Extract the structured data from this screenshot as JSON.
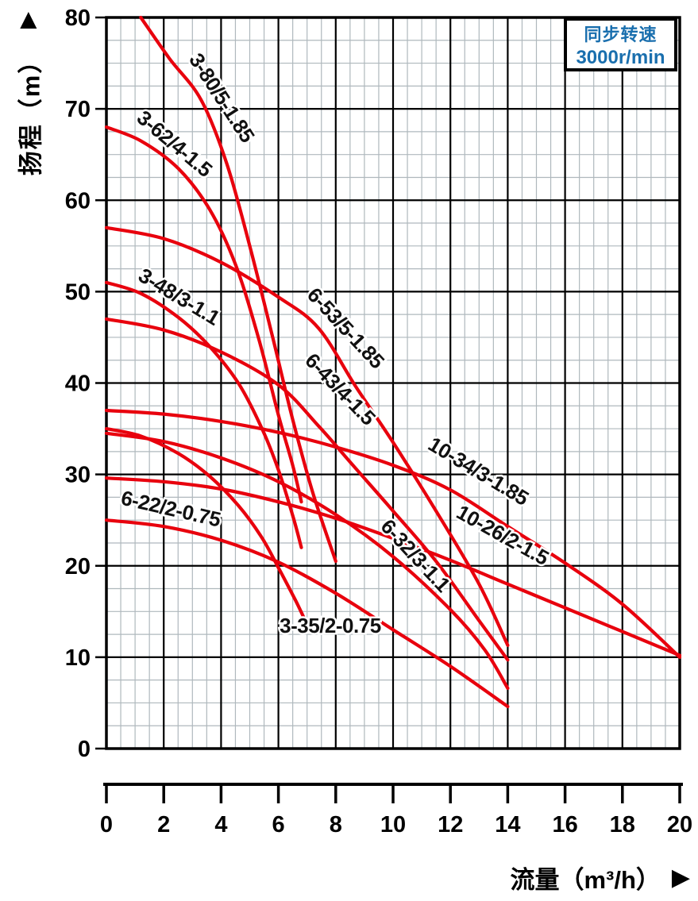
{
  "legend": {
    "line1": "同步转速",
    "line2": "3000r/min",
    "color": "#1a6fae"
  },
  "y_axis": {
    "title": "扬程（m）",
    "arrow": "▲",
    "ticks": [
      80,
      70,
      60,
      50,
      40,
      30,
      20,
      10,
      0
    ]
  },
  "x_axis": {
    "title": "流量（m³/h）",
    "arrow": "▶",
    "ticks": [
      0,
      2,
      4,
      6,
      8,
      10,
      12,
      14,
      16,
      18,
      20
    ]
  },
  "colors": {
    "curve": "#e8000d",
    "grid_major": "#000000",
    "grid_minor": "#afb8bd",
    "frame": "#000000",
    "label_text": "#111111"
  },
  "chart_data": {
    "type": "line",
    "title": "",
    "xlabel": "流量（m³/h）",
    "ylabel": "扬程（m）",
    "xlim": [
      0,
      20
    ],
    "ylim": [
      0,
      80
    ],
    "x_major_step": 2,
    "x_minor_step": 0.5,
    "y_major_step": 10,
    "y_minor_step": 2.5,
    "grid": "on",
    "legend_position": "top-right",
    "series": [
      {
        "name": "3-80/5-1.85",
        "points": [
          [
            1.2,
            80
          ],
          [
            2.2,
            75.5
          ],
          [
            3.3,
            71
          ],
          [
            4.2,
            64
          ],
          [
            5.0,
            55
          ],
          [
            5.8,
            45
          ],
          [
            6.5,
            36
          ],
          [
            7.2,
            28
          ],
          [
            8.0,
            20.5
          ]
        ],
        "label": {
          "q": 3.82,
          "h": 70.8,
          "rot": 57
        }
      },
      {
        "name": "3-62/4-1.5",
        "points": [
          [
            0,
            68
          ],
          [
            1.2,
            66.5
          ],
          [
            2.5,
            63.5
          ],
          [
            3.6,
            59
          ],
          [
            4.5,
            53
          ],
          [
            5.3,
            45
          ],
          [
            6.0,
            36.5
          ],
          [
            6.5,
            31
          ],
          [
            6.8,
            27
          ]
        ],
        "label": {
          "q": 2.22,
          "h": 65.6,
          "rot": 40
        }
      },
      {
        "name": "3-48/3-1.1",
        "points": [
          [
            0,
            51
          ],
          [
            1.2,
            49.8
          ],
          [
            2.5,
            47.2
          ],
          [
            3.6,
            44
          ],
          [
            4.6,
            40
          ],
          [
            5.4,
            35.2
          ],
          [
            6.0,
            30.5
          ],
          [
            6.5,
            25.5
          ],
          [
            6.8,
            22
          ]
        ],
        "label": {
          "q": 2.41,
          "h": 48.8,
          "rot": 31
        }
      },
      {
        "name": "3-35/2-0.75",
        "points": [
          [
            0,
            35
          ],
          [
            1.2,
            34.2
          ],
          [
            2.5,
            32.3
          ],
          [
            3.6,
            29.8
          ],
          [
            4.6,
            26.6
          ],
          [
            5.4,
            23.2
          ],
          [
            6.0,
            19.8
          ],
          [
            6.6,
            16.2
          ],
          [
            6.95,
            13.9
          ]
        ],
        "label": {
          "q": 7.81,
          "h": 12.7,
          "rot": 0
        }
      },
      {
        "name": "6-53/5-1.85",
        "points": [
          [
            0,
            57
          ],
          [
            2,
            55.8
          ],
          [
            4,
            53.2
          ],
          [
            6,
            49.4
          ],
          [
            7.4,
            46
          ],
          [
            8.7,
            39.6
          ],
          [
            10,
            33.5
          ],
          [
            11.5,
            26
          ],
          [
            13,
            18
          ],
          [
            14,
            11.3
          ]
        ],
        "label": {
          "q": 8.17,
          "h": 45.5,
          "rot": 47
        }
      },
      {
        "name": "6-43/4-1.5",
        "points": [
          [
            0,
            47
          ],
          [
            2,
            45.8
          ],
          [
            4,
            43.4
          ],
          [
            6,
            39.8
          ],
          [
            7.4,
            35.3
          ],
          [
            8.6,
            31
          ],
          [
            10,
            26
          ],
          [
            11.5,
            20.5
          ],
          [
            13,
            14
          ],
          [
            14,
            9.7
          ]
        ],
        "label": {
          "q": 7.98,
          "h": 38.8,
          "rot": 46
        }
      },
      {
        "name": "6-32/3-1.1",
        "points": [
          [
            0,
            34.5
          ],
          [
            2,
            33.6
          ],
          [
            4,
            31.8
          ],
          [
            6,
            29.2
          ],
          [
            8,
            25.6
          ],
          [
            10,
            21
          ],
          [
            12,
            15.2
          ],
          [
            13.2,
            10.8
          ],
          [
            14,
            6.6
          ]
        ],
        "label": {
          "q": 10.6,
          "h": 20.6,
          "rot": 47
        }
      },
      {
        "name": "6-22/2-0.75",
        "points": [
          [
            0,
            25
          ],
          [
            2,
            24.3
          ],
          [
            4,
            22.8
          ],
          [
            6,
            20.4
          ],
          [
            8,
            17
          ],
          [
            10,
            13
          ],
          [
            12,
            9
          ],
          [
            14,
            4.6
          ]
        ],
        "label": {
          "q": 2.19,
          "h": 25.5,
          "rot": 13
        }
      },
      {
        "name": "10-34/3-1.85",
        "points": [
          [
            0,
            37
          ],
          [
            2,
            36.6
          ],
          [
            4,
            35.8
          ],
          [
            6,
            34.6
          ],
          [
            8,
            33
          ],
          [
            10,
            31
          ],
          [
            12,
            28.3
          ],
          [
            14,
            24.3
          ],
          [
            16,
            20.3
          ],
          [
            18,
            15.8
          ],
          [
            20,
            10
          ]
        ],
        "label": {
          "q": 12.85,
          "h": 29.7,
          "rot": 31
        }
      },
      {
        "name": "10-26/2-1.5",
        "points": [
          [
            0,
            29.6
          ],
          [
            2,
            29.2
          ],
          [
            4,
            28.4
          ],
          [
            6,
            27
          ],
          [
            8,
            25.2
          ],
          [
            10,
            23
          ],
          [
            12,
            20.6
          ],
          [
            14,
            18
          ],
          [
            16,
            15.4
          ],
          [
            18,
            12.8
          ],
          [
            20,
            10.2
          ]
        ],
        "label": {
          "q": 13.7,
          "h": 22.7,
          "rot": 29
        }
      }
    ]
  }
}
